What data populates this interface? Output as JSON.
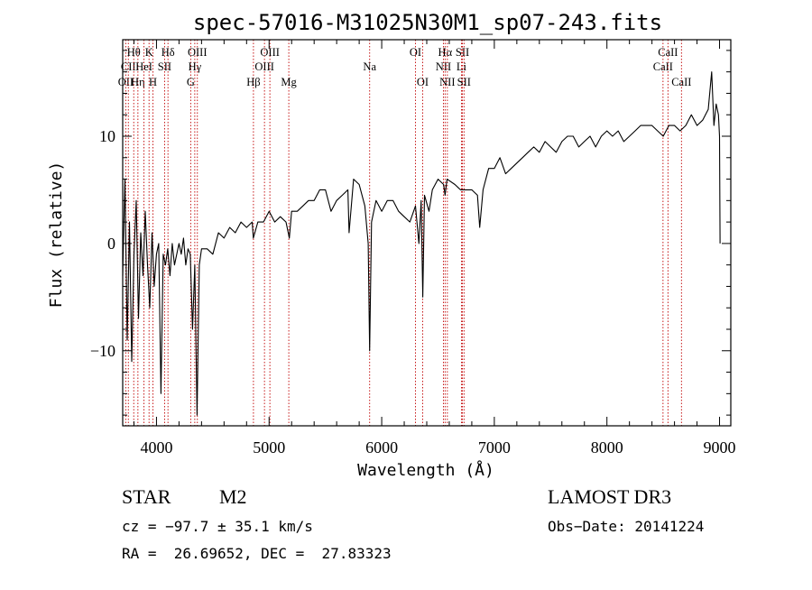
{
  "chart_data": {
    "type": "line",
    "title": "spec-57016-M31025N30M1_sp07-243.fits",
    "xlabel": "Wavelength (Å)",
    "ylabel": "Flux (relative)",
    "xlim": [
      3700,
      9100
    ],
    "ylim": [
      -17,
      19
    ],
    "xticks": [
      4000,
      5000,
      6000,
      7000,
      8000,
      9000
    ],
    "yticks": [
      -10,
      0,
      10
    ],
    "series": [
      {
        "name": "spectrum",
        "x": [
          3700,
          3720,
          3740,
          3760,
          3780,
          3800,
          3820,
          3840,
          3860,
          3880,
          3900,
          3920,
          3940,
          3960,
          3980,
          4000,
          4020,
          4040,
          4060,
          4080,
          4100,
          4120,
          4140,
          4160,
          4180,
          4200,
          4220,
          4240,
          4260,
          4280,
          4300,
          4320,
          4340,
          4360,
          4380,
          4400,
          4450,
          4500,
          4550,
          4600,
          4650,
          4700,
          4750,
          4800,
          4850,
          4860,
          4900,
          4950,
          5000,
          5050,
          5100,
          5150,
          5180,
          5200,
          5250,
          5300,
          5350,
          5400,
          5450,
          5500,
          5550,
          5600,
          5650,
          5700,
          5710,
          5750,
          5800,
          5850,
          5880,
          5893,
          5910,
          5950,
          6000,
          6050,
          6100,
          6150,
          6200,
          6250,
          6300,
          6330,
          6350,
          6365,
          6380,
          6420,
          6450,
          6500,
          6550,
          6563,
          6580,
          6650,
          6700,
          6750,
          6800,
          6850,
          6870,
          6900,
          6950,
          7000,
          7050,
          7100,
          7150,
          7200,
          7250,
          7300,
          7350,
          7400,
          7450,
          7500,
          7550,
          7600,
          7650,
          7700,
          7750,
          7800,
          7850,
          7900,
          7950,
          8000,
          8050,
          8100,
          8150,
          8200,
          8250,
          8300,
          8350,
          8400,
          8450,
          8500,
          8550,
          8600,
          8650,
          8700,
          8750,
          8800,
          8850,
          8900,
          8930,
          8950,
          8970,
          8990,
          9000,
          9005
        ],
        "values": [
          -3,
          6,
          -9,
          2,
          -11,
          -1,
          4,
          -7,
          1,
          -3,
          3,
          -2,
          -6,
          1,
          -4,
          -1,
          0,
          -14,
          -1,
          -2,
          -0.5,
          -3,
          0,
          -2,
          -1,
          0,
          -1,
          0.5,
          -2,
          -0.5,
          -1,
          -8,
          -2,
          -16,
          -2,
          -0.5,
          -0.5,
          -1,
          1,
          0.5,
          1.5,
          1,
          2,
          1.5,
          2,
          0.5,
          2,
          2,
          3,
          2,
          2.5,
          2,
          0.5,
          3,
          3,
          3.5,
          4,
          4,
          5,
          5,
          3,
          4,
          4.5,
          5,
          1,
          6,
          5.5,
          3.5,
          0,
          -10,
          2,
          4,
          3,
          4,
          4,
          3,
          2.5,
          2,
          3.5,
          0,
          4,
          -5,
          4.5,
          3,
          5,
          6,
          5.5,
          4.5,
          6,
          5.5,
          5,
          5,
          5,
          4.5,
          1.5,
          5,
          7,
          7,
          8,
          6.5,
          7,
          7.5,
          8,
          8.5,
          9,
          8.5,
          9.5,
          9,
          8.5,
          9.5,
          10,
          10,
          9,
          9.5,
          10,
          9,
          10,
          10.5,
          10,
          10.5,
          9.5,
          10,
          10.5,
          11,
          11,
          11,
          10.5,
          10,
          11,
          11,
          10.5,
          11,
          12,
          11,
          11.5,
          12.5,
          16,
          11,
          13,
          12,
          10,
          0
        ]
      }
    ],
    "line_markers": [
      {
        "wavelength": 3727,
        "label": "OII",
        "row": 3
      },
      {
        "wavelength": 3750,
        "label": "CII",
        "row": 2
      },
      {
        "wavelength": 3798,
        "label": "Hθ",
        "row": 1
      },
      {
        "wavelength": 3835,
        "label": "Hη",
        "row": 3
      },
      {
        "wavelength": 3889,
        "label": "HeI",
        "row": 2
      },
      {
        "wavelength": 3934,
        "label": "K",
        "row": 1
      },
      {
        "wavelength": 3969,
        "label": "H",
        "row": 3
      },
      {
        "wavelength": 4072,
        "label": "SII",
        "row": 2
      },
      {
        "wavelength": 4102,
        "label": "Hδ",
        "row": 1
      },
      {
        "wavelength": 4304,
        "label": "G",
        "row": 3
      },
      {
        "wavelength": 4340,
        "label": "Hγ",
        "row": 2
      },
      {
        "wavelength": 4363,
        "label": "OIII",
        "row": 1
      },
      {
        "wavelength": 4861,
        "label": "Hβ",
        "row": 3
      },
      {
        "wavelength": 4959,
        "label": "OIII",
        "row": 2
      },
      {
        "wavelength": 5007,
        "label": "OIII",
        "row": 1
      },
      {
        "wavelength": 5175,
        "label": "Mg",
        "row": 3
      },
      {
        "wavelength": 5893,
        "label": "Na",
        "row": 2
      },
      {
        "wavelength": 6300,
        "label": "OI",
        "row": 1
      },
      {
        "wavelength": 6364,
        "label": "OI",
        "row": 3
      },
      {
        "wavelength": 6548,
        "label": "NII",
        "row": 2
      },
      {
        "wavelength": 6563,
        "label": "Hα",
        "row": 1
      },
      {
        "wavelength": 6583,
        "label": "NII",
        "row": 3
      },
      {
        "wavelength": 6708,
        "label": "Li",
        "row": 2
      },
      {
        "wavelength": 6717,
        "label": "SII",
        "row": 1
      },
      {
        "wavelength": 6731,
        "label": "SII",
        "row": 3
      },
      {
        "wavelength": 8498,
        "label": "CaII",
        "row": 2
      },
      {
        "wavelength": 8542,
        "label": "CaII",
        "row": 1
      },
      {
        "wavelength": 8662,
        "label": "CaII",
        "row": 3
      }
    ]
  },
  "info": {
    "class": "STAR",
    "subclass": "M2",
    "survey": "LAMOST DR3",
    "cz": "cz = −97.7 ± 35.1 km/s",
    "obs_date": "Obs−Date: 20141224",
    "coords": "RA =  26.69652, DEC =  27.83323"
  },
  "colors": {
    "spectrum": "#000000",
    "marker": "#c00000",
    "axes": "#000000"
  }
}
